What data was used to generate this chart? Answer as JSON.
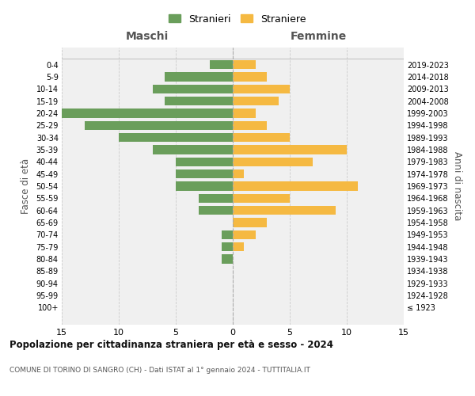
{
  "age_groups": [
    "100+",
    "95-99",
    "90-94",
    "85-89",
    "80-84",
    "75-79",
    "70-74",
    "65-69",
    "60-64",
    "55-59",
    "50-54",
    "45-49",
    "40-44",
    "35-39",
    "30-34",
    "25-29",
    "20-24",
    "15-19",
    "10-14",
    "5-9",
    "0-4"
  ],
  "birth_years": [
    "≤ 1923",
    "1924-1928",
    "1929-1933",
    "1934-1938",
    "1939-1943",
    "1944-1948",
    "1949-1953",
    "1954-1958",
    "1959-1963",
    "1964-1968",
    "1969-1973",
    "1974-1978",
    "1979-1983",
    "1984-1988",
    "1989-1993",
    "1994-1998",
    "1999-2003",
    "2004-2008",
    "2009-2013",
    "2014-2018",
    "2019-2023"
  ],
  "males": [
    0,
    0,
    0,
    0,
    1,
    1,
    1,
    0,
    3,
    3,
    5,
    5,
    5,
    7,
    10,
    13,
    15,
    6,
    7,
    6,
    2
  ],
  "females": [
    0,
    0,
    0,
    0,
    0,
    1,
    2,
    3,
    9,
    5,
    11,
    1,
    7,
    10,
    5,
    3,
    2,
    4,
    5,
    3,
    2
  ],
  "male_color": "#6a9e5b",
  "female_color": "#f5b942",
  "background_color": "#f0f0f0",
  "grid_color": "#cccccc",
  "title": "Popolazione per cittadinanza straniera per età e sesso - 2024",
  "subtitle": "COMUNE DI TORINO DI SANGRO (CH) - Dati ISTAT al 1° gennaio 2024 - TUTTITALIA.IT",
  "left_label": "Maschi",
  "right_label": "Femmine",
  "y_left_label": "Fasce di età",
  "y_right_label": "Anni di nascita",
  "legend_male": "Stranieri",
  "legend_female": "Straniere",
  "xlim": 15
}
